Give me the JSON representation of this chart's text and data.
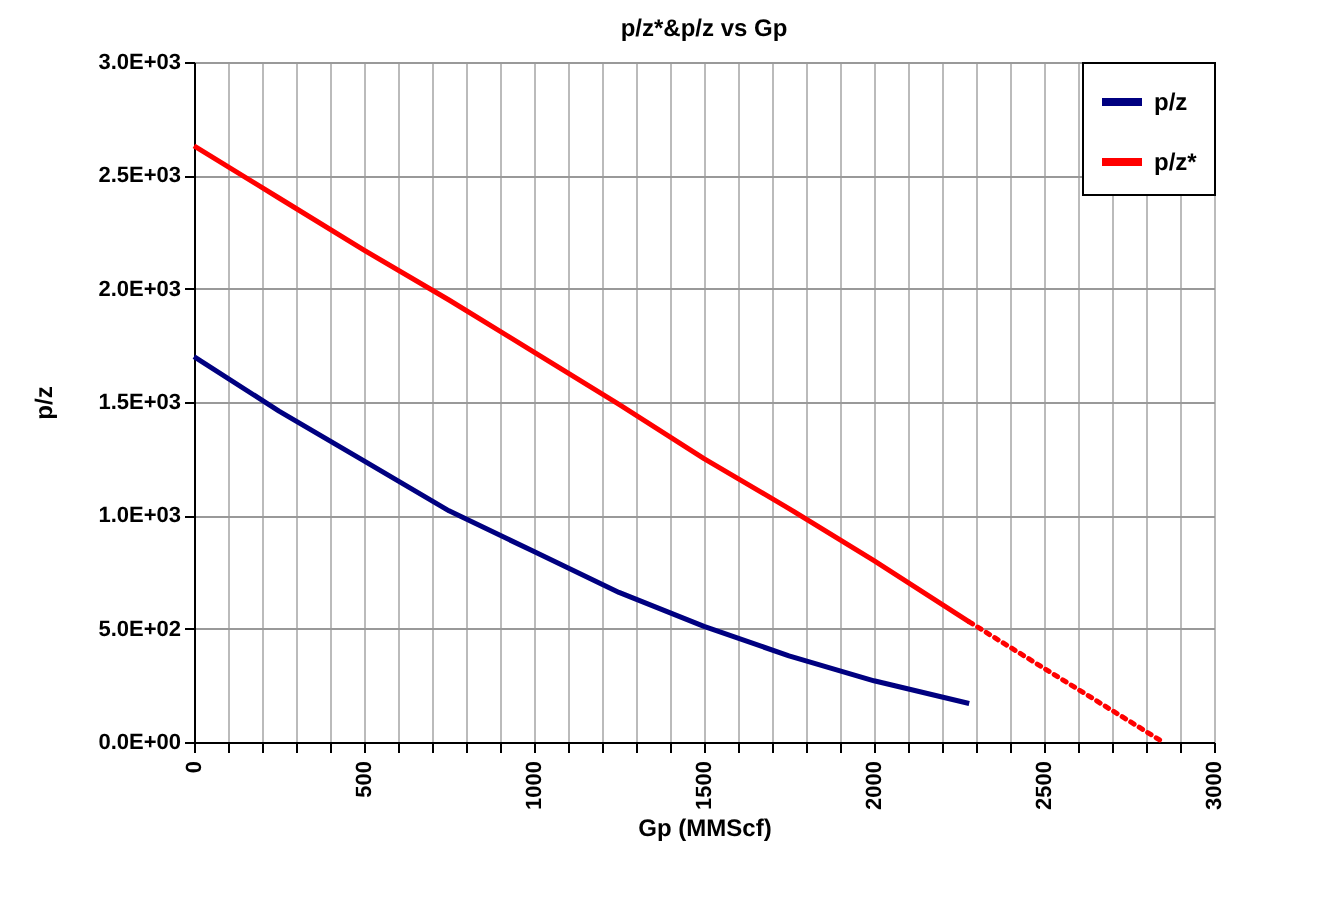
{
  "chart_data": {
    "type": "line",
    "title": "p/z*&p/z  vs Gp",
    "xlabel": "Gp (MMScf)",
    "ylabel": "p/z",
    "xlim": [
      0,
      3000
    ],
    "xticks": [
      0,
      {
        "value": 100,
        "label": null
      },
      {
        "value": 200,
        "label": null
      },
      {
        "value": 300,
        "label": null
      },
      {
        "value": 400,
        "label": null
      },
      500,
      {
        "value": 600,
        "label": null
      },
      {
        "value": 700,
        "label": null
      },
      {
        "value": 800,
        "label": null
      },
      {
        "value": 900,
        "label": null
      },
      1000,
      {
        "value": 1100,
        "label": null
      },
      {
        "value": 1200,
        "label": null
      },
      {
        "value": 1300,
        "label": null
      },
      {
        "value": 1400,
        "label": null
      },
      1500,
      {
        "value": 1600,
        "label": null
      },
      {
        "value": 1700,
        "label": null
      },
      {
        "value": 1800,
        "label": null
      },
      {
        "value": 1900,
        "label": null
      },
      2000,
      {
        "value": 2100,
        "label": null
      },
      {
        "value": 2200,
        "label": null
      },
      {
        "value": 2300,
        "label": null
      },
      {
        "value": 2400,
        "label": null
      },
      2500,
      {
        "value": 2600,
        "label": null
      },
      {
        "value": 2700,
        "label": null
      },
      {
        "value": 2800,
        "label": null
      },
      {
        "value": 2900,
        "label": null
      },
      3000
    ],
    "ylim": [
      0,
      3000
    ],
    "yticks": [
      {
        "value": 0,
        "label": "0.0E+00"
      },
      {
        "value": 500,
        "label": "5.0E+02"
      },
      {
        "value": 1000,
        "label": "1.0E+03"
      },
      {
        "value": 1500,
        "label": "1.5E+03"
      },
      {
        "value": 2000,
        "label": "2.0E+03"
      },
      {
        "value": 2500,
        "label": "2.5E+03"
      },
      {
        "value": 3000,
        "label": "3.0E+03"
      }
    ],
    "grid": true,
    "legend": "top right",
    "marker": "none",
    "series": [
      {
        "name": "p/z",
        "color": "#000080",
        "x": [
          0,
          250,
          500,
          750,
          1000,
          1250,
          1500,
          1750,
          2000,
          2280
        ],
        "values": [
          1700,
          1460,
          1240,
          1020,
          840,
          660,
          510,
          380,
          270,
          170
        ]
      },
      {
        "name": "p/z*",
        "color": "#ff0000",
        "x": [
          0,
          250,
          500,
          750,
          1000,
          1250,
          1500,
          1750,
          2000,
          2280
        ],
        "values": [
          2630,
          2400,
          2170,
          1950,
          1720,
          1490,
          1250,
          1030,
          800,
          530
        ]
      },
      {
        "color": "#ff0000",
        "line_style": "dotted",
        "x": [
          2280,
          2850
        ],
        "values": [
          530,
          0
        ]
      }
    ]
  }
}
